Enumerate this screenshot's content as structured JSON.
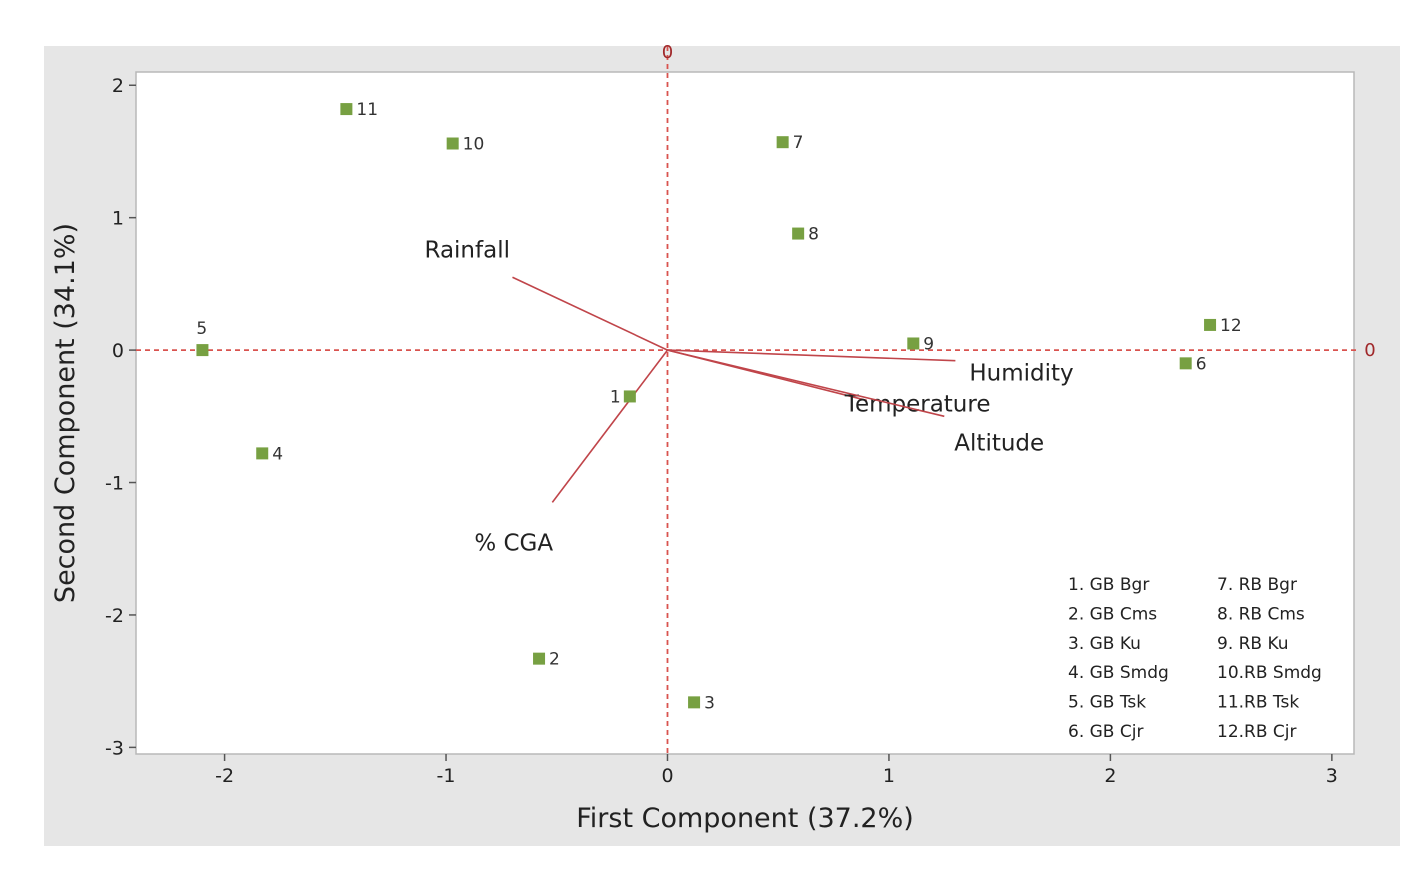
{
  "chart_data": {
    "type": "scatter",
    "subtype": "biplot",
    "xlabel": "First Component (37.2%)",
    "ylabel": "Second Component (34.1%)",
    "xlim": [
      -2.4,
      3.1
    ],
    "ylim": [
      -3.05,
      2.1
    ],
    "xticks": [
      -2,
      -1,
      0,
      1,
      2,
      3
    ],
    "yticks": [
      -3,
      -2,
      -1,
      0,
      1,
      2
    ],
    "grid": false,
    "reference_lines": {
      "x": 0,
      "y": 0,
      "label": "0",
      "color": "#d9534f",
      "style": "dashed"
    },
    "marker_color": "#77a042",
    "vector_color": "#c0454a",
    "points": [
      {
        "label": "1",
        "x": -0.17,
        "y": -0.35
      },
      {
        "label": "2",
        "x": -0.58,
        "y": -2.33
      },
      {
        "label": "3",
        "x": 0.12,
        "y": -2.66
      },
      {
        "label": "4",
        "x": -1.83,
        "y": -0.78
      },
      {
        "label": "5",
        "x": -2.1,
        "y": 0.0
      },
      {
        "label": "6",
        "x": 2.34,
        "y": -0.1
      },
      {
        "label": "7",
        "x": 0.52,
        "y": 1.57
      },
      {
        "label": "8",
        "x": 0.59,
        "y": 0.88
      },
      {
        "label": "9",
        "x": 1.11,
        "y": 0.05
      },
      {
        "label": "10",
        "x": -0.97,
        "y": 1.56
      },
      {
        "label": "11",
        "x": -1.45,
        "y": 1.82
      },
      {
        "label": "12",
        "x": 2.45,
        "y": 0.19
      }
    ],
    "vectors": [
      {
        "name": "Rainfall",
        "x": -0.7,
        "y": 0.55
      },
      {
        "name": "Humidity",
        "x": 1.3,
        "y": -0.08
      },
      {
        "name": "Temperature",
        "x": 0.9,
        "y": -0.38
      },
      {
        "name": "Altitude",
        "x": 1.25,
        "y": -0.5
      },
      {
        "name": "% CGA",
        "x": -0.52,
        "y": -1.15
      }
    ],
    "legend": {
      "columns": [
        [
          "1. GB Bgr",
          "2. GB Cms",
          "3. GB Ku",
          "4. GB Smdg",
          "5. GB Tsk",
          "6. GB Cjr"
        ],
        [
          "7. RB Bgr",
          "8. RB Cms",
          "9. RB Ku",
          "10.RB Smdg",
          "11.RB Tsk",
          "12.RB Cjr"
        ]
      ],
      "placement": "bottom-right"
    }
  }
}
